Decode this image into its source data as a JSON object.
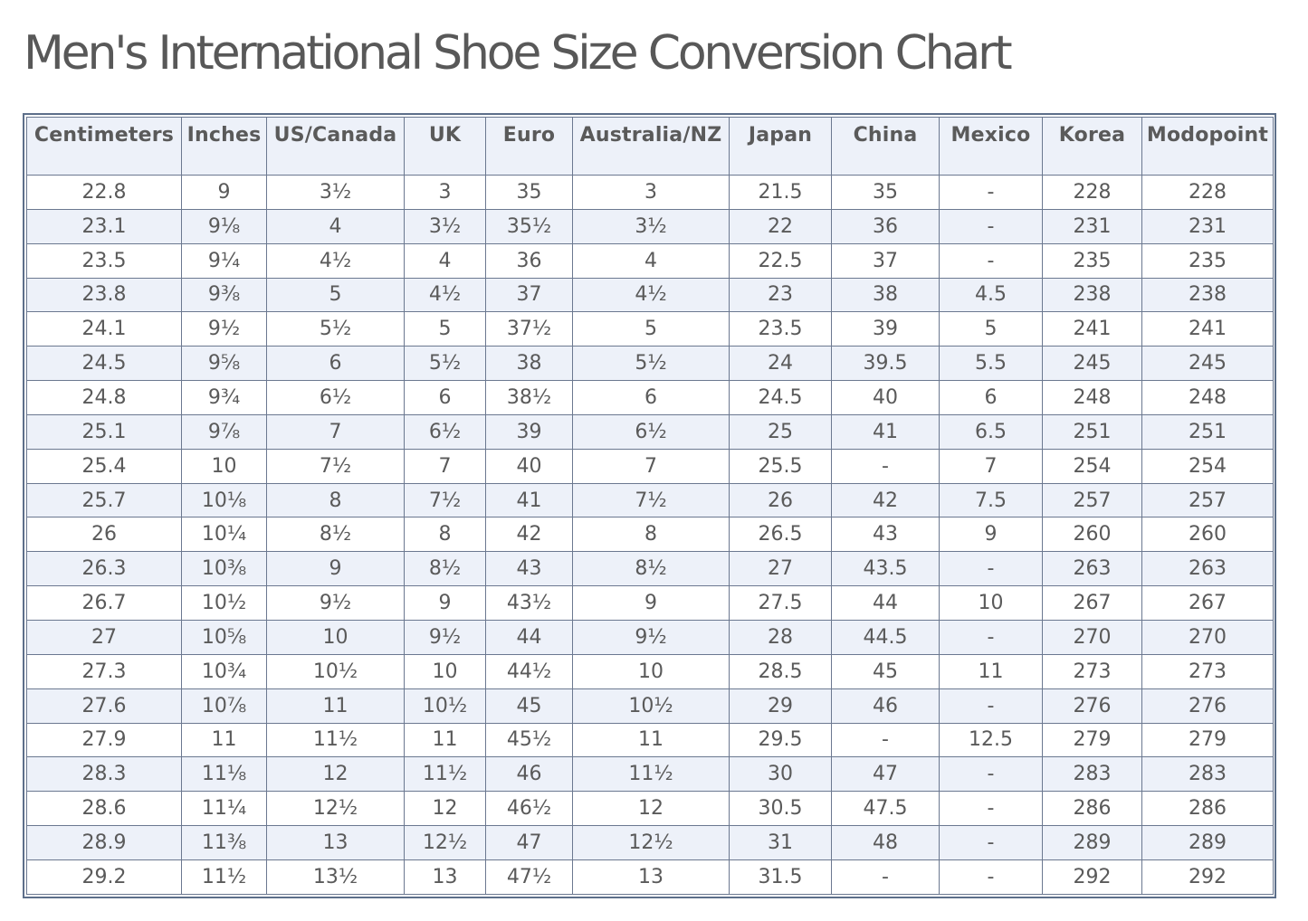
{
  "title": "Men's International Shoe Size Conversion Chart",
  "table": {
    "headers": [
      "Centimeters",
      "Inches",
      "US/Canada",
      "UK",
      "Euro",
      "Australia/NZ",
      "Japan",
      "China",
      "Mexico",
      "Korea",
      "Modopoint"
    ],
    "rows": [
      [
        "22.8",
        "9",
        "3½",
        "3",
        "35",
        "3",
        "21.5",
        "35",
        "-",
        "228",
        "228"
      ],
      [
        "23.1",
        "9⅛",
        "4",
        "3½",
        "35½",
        "3½",
        "22",
        "36",
        "-",
        "231",
        "231"
      ],
      [
        "23.5",
        "9¼",
        "4½",
        "4",
        "36",
        "4",
        "22.5",
        "37",
        "-",
        "235",
        "235"
      ],
      [
        "23.8",
        "9⅜",
        "5",
        "4½",
        "37",
        "4½",
        "23",
        "38",
        "4.5",
        "238",
        "238"
      ],
      [
        "24.1",
        "9½",
        "5½",
        "5",
        "37½",
        "5",
        "23.5",
        "39",
        "5",
        "241",
        "241"
      ],
      [
        "24.5",
        "9⅝",
        "6",
        "5½",
        "38",
        "5½",
        "24",
        "39.5",
        "5.5",
        "245",
        "245"
      ],
      [
        "24.8",
        "9¾",
        "6½",
        "6",
        "38½",
        "6",
        "24.5",
        "40",
        "6",
        "248",
        "248"
      ],
      [
        "25.1",
        "9⅞",
        "7",
        "6½",
        "39",
        "6½",
        "25",
        "41",
        "6.5",
        "251",
        "251"
      ],
      [
        "25.4",
        "10",
        "7½",
        "7",
        "40",
        "7",
        "25.5",
        "-",
        "7",
        "254",
        "254"
      ],
      [
        "25.7",
        "10⅛",
        "8",
        "7½",
        "41",
        "7½",
        "26",
        "42",
        "7.5",
        "257",
        "257"
      ],
      [
        "26",
        "10¼",
        "8½",
        "8",
        "42",
        "8",
        "26.5",
        "43",
        "9",
        "260",
        "260"
      ],
      [
        "26.3",
        "10⅜",
        "9",
        "8½",
        "43",
        "8½",
        "27",
        "43.5",
        "-",
        "263",
        "263"
      ],
      [
        "26.7",
        "10½",
        "9½",
        "9",
        "43½",
        "9",
        "27.5",
        "44",
        "10",
        "267",
        "267"
      ],
      [
        "27",
        "10⅝",
        "10",
        "9½",
        "44",
        "9½",
        "28",
        "44.5",
        "-",
        "270",
        "270"
      ],
      [
        "27.3",
        "10¾",
        "10½",
        "10",
        "44½",
        "10",
        "28.5",
        "45",
        "11",
        "273",
        "273"
      ],
      [
        "27.6",
        "10⅞",
        "11",
        "10½",
        "45",
        "10½",
        "29",
        "46",
        "-",
        "276",
        "276"
      ],
      [
        "27.9",
        "11",
        "11½",
        "11",
        "45½",
        "11",
        "29.5",
        "-",
        "12.5",
        "279",
        "279"
      ],
      [
        "28.3",
        "11⅛",
        "12",
        "11½",
        "46",
        "11½",
        "30",
        "47",
        "-",
        "283",
        "283"
      ],
      [
        "28.6",
        "11¼",
        "12½",
        "12",
        "46½",
        "12",
        "30.5",
        "47.5",
        "-",
        "286",
        "286"
      ],
      [
        "28.9",
        "11⅜",
        "13",
        "12½",
        "47",
        "12½",
        "31",
        "48",
        "-",
        "289",
        "289"
      ],
      [
        "29.2",
        "11½",
        "13½",
        "13",
        "47½",
        "13",
        "31.5",
        "-",
        "-",
        "292",
        "292"
      ]
    ]
  }
}
